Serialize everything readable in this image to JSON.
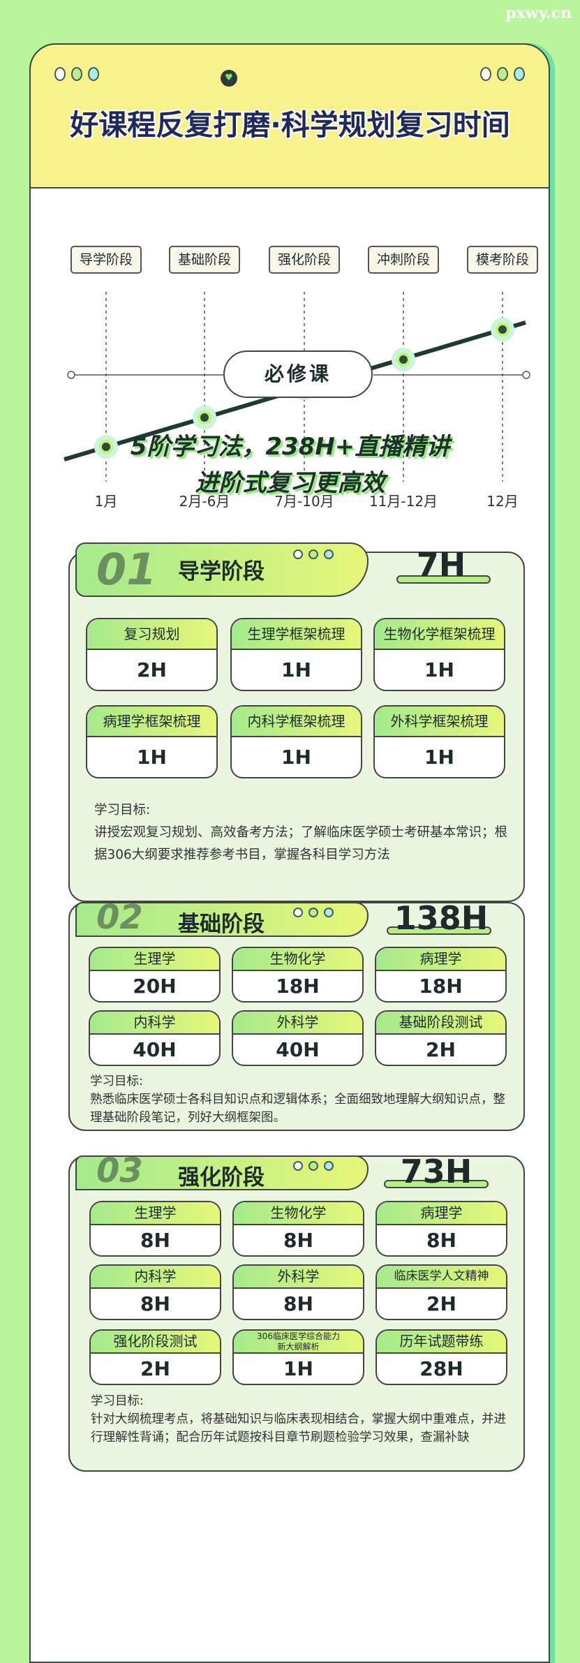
{
  "watermark": "pxwy.cn",
  "header": {
    "title": "好课程反复打磨·科学规划复习时间",
    "heart_icon": "heart-icon"
  },
  "timeline": {
    "stages": [
      "导学阶段",
      "基础阶段",
      "强化阶段",
      "冲刺阶段",
      "模考阶段"
    ],
    "months": [
      "1月",
      "2月-6月",
      "7月-10月",
      "11月-12月",
      "12月"
    ]
  },
  "required": {
    "label": "必修课"
  },
  "headline": {
    "line1": "5阶学习法，238H+直播精讲",
    "line2": "进阶式复习更高效"
  },
  "sections": [
    {
      "num": "01",
      "name": "导学阶段",
      "total": "7H",
      "items": [
        {
          "name": "复习规划",
          "hours": "2H"
        },
        {
          "name": "生理学框架梳理",
          "hours": "1H"
        },
        {
          "name": "生物化学框架梳理",
          "hours": "1H"
        },
        {
          "name": "病理学框架梳理",
          "hours": "1H"
        },
        {
          "name": "内科学框架梳理",
          "hours": "1H"
        },
        {
          "name": "外科学框架梳理",
          "hours": "1H"
        }
      ],
      "goal_label": "学习目标:",
      "goal": "讲授宏观复习规划、高效备考方法；了解临床医学硕士考研基本常识；根据306大纲要求推荐参考书目，掌握各科目学习方法"
    },
    {
      "num": "02",
      "name": "基础阶段",
      "total": "138H",
      "items": [
        {
          "name": "生理学",
          "hours": "20H"
        },
        {
          "name": "生物化学",
          "hours": "18H"
        },
        {
          "name": "病理学",
          "hours": "18H"
        },
        {
          "name": "内科学",
          "hours": "40H"
        },
        {
          "name": "外科学",
          "hours": "40H"
        },
        {
          "name": "基础阶段测试",
          "hours": "2H"
        }
      ],
      "goal_label": "学习目标:",
      "goal": "熟悉临床医学硕士各科目知识点和逻辑体系；全面细致地理解大纲知识点，整理基础阶段笔记，列好大纲框架图。"
    },
    {
      "num": "03",
      "name": "强化阶段",
      "total": "73H",
      "items": [
        {
          "name": "生理学",
          "hours": "8H"
        },
        {
          "name": "生物化学",
          "hours": "8H"
        },
        {
          "name": "病理学",
          "hours": "8H"
        },
        {
          "name": "内科学",
          "hours": "8H"
        },
        {
          "name": "外科学",
          "hours": "8H"
        },
        {
          "name": "临床医学人文精神",
          "hours": "2H"
        },
        {
          "name": "强化阶段测试",
          "hours": "2H"
        },
        {
          "name": "306临床医学综合能力新大纲解析",
          "hours": "1H"
        },
        {
          "name": "历年试题带练",
          "hours": "28H"
        }
      ],
      "goal_label": "学习目标:",
      "goal": "针对大纲梳理考点，将基础知识与临床表现相结合，掌握大纲中重难点，并进行理解性背诵；配合历年试题按科目章节刷题检验学习效果，查漏补缺"
    }
  ],
  "colors": {
    "background": "#b9f59c",
    "header": "#f7f28c",
    "section": "#eaf6df",
    "accent": "#a5ea8c"
  }
}
